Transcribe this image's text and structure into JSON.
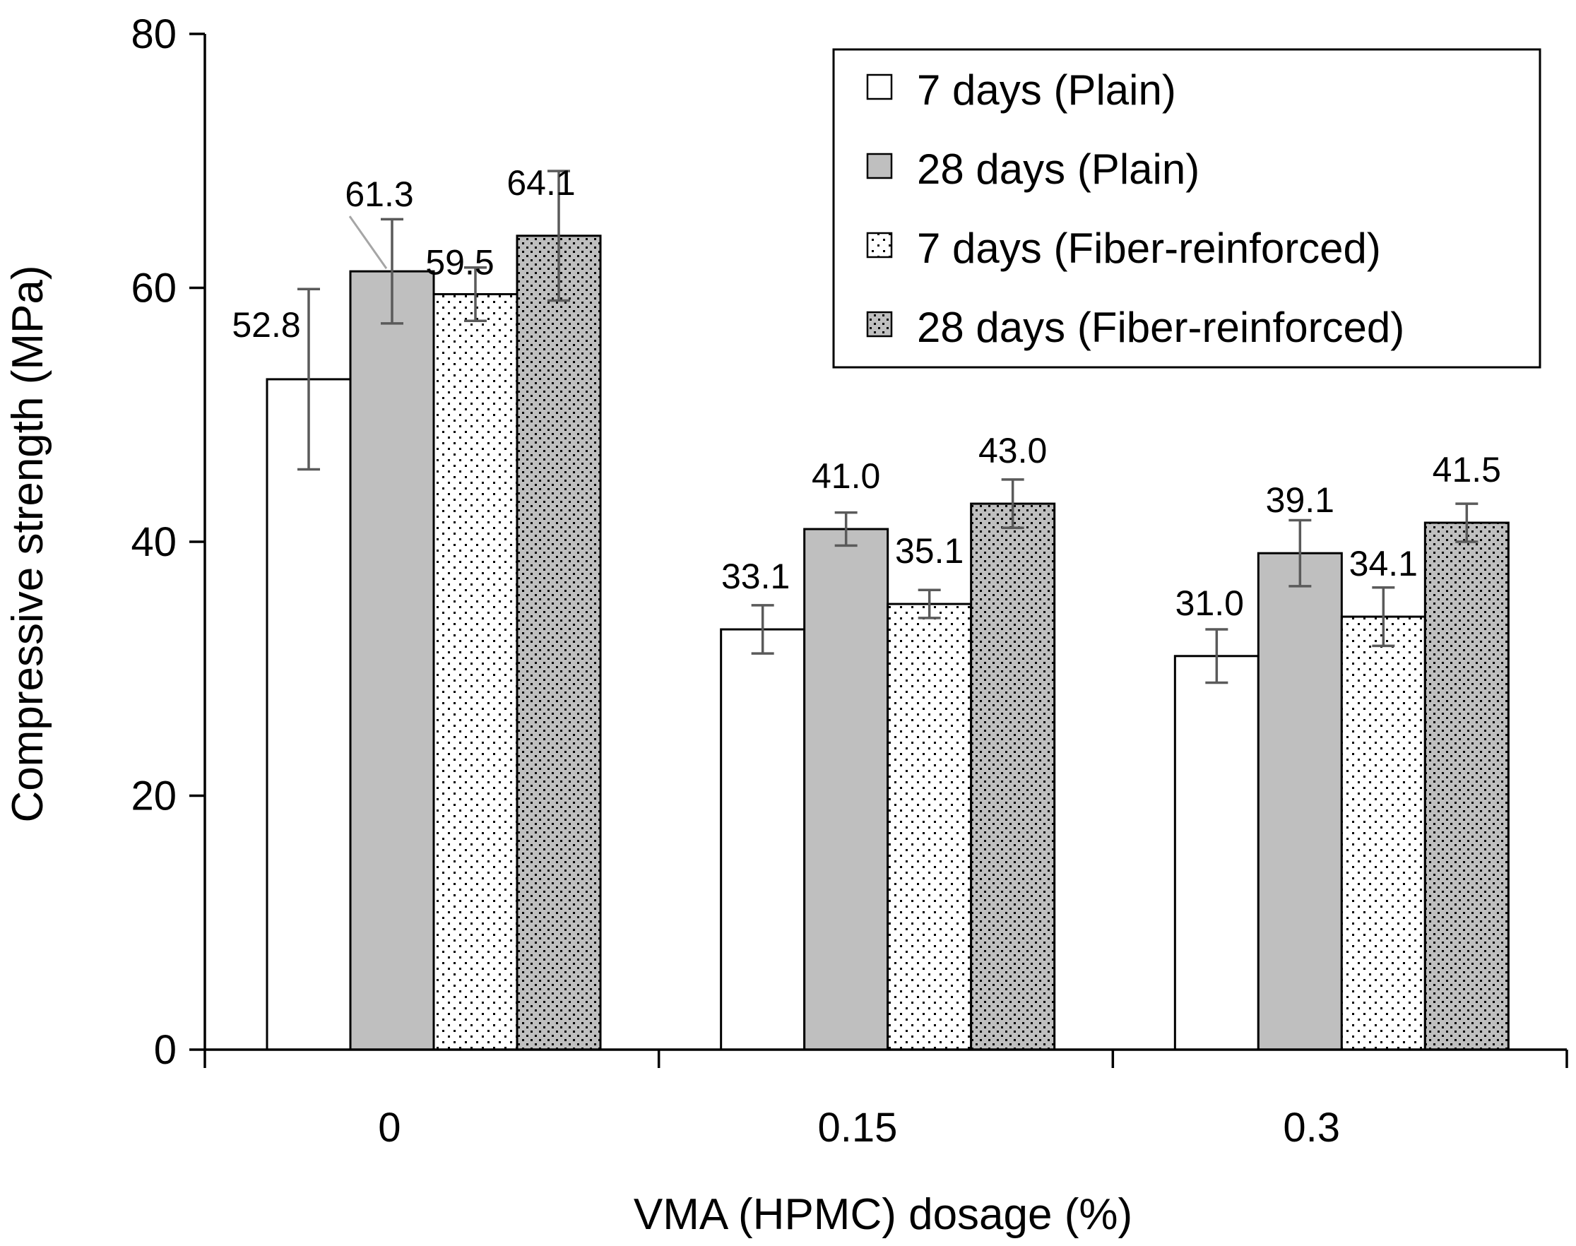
{
  "chart_data": {
    "type": "bar",
    "title": "",
    "xlabel": "VMA (HPMC) dosage (%)",
    "ylabel": "Compressive strength (MPa)",
    "categories": [
      "0",
      "0.15",
      "0.3"
    ],
    "ylim": [
      0,
      80
    ],
    "yticks": [
      0,
      20,
      40,
      60,
      80
    ],
    "ytick_labels": [
      "0",
      "20",
      "40",
      "60",
      "80"
    ],
    "grid": false,
    "legend_position": "top-right",
    "series": [
      {
        "name": "7 days (Plain)",
        "fill": "white",
        "values": [
          52.8,
          33.1,
          31.0
        ],
        "errors": [
          7.1,
          1.9,
          2.1
        ],
        "labels": [
          "52.8",
          "33.1",
          "31.0"
        ]
      },
      {
        "name": "28 days (Plain)",
        "fill": "gray",
        "values": [
          61.3,
          41.0,
          39.1
        ],
        "errors": [
          4.1,
          1.3,
          2.6
        ],
        "labels": [
          "61.3",
          "41.0",
          "39.1"
        ]
      },
      {
        "name": "7 days (Fiber-reinforced)",
        "fill": "sparse-dots",
        "values": [
          59.5,
          35.1,
          34.1
        ],
        "errors": [
          2.1,
          1.1,
          2.3
        ],
        "labels": [
          "59.5",
          "35.1",
          "34.1"
        ]
      },
      {
        "name": "28 days (Fiber-reinforced)",
        "fill": "dense-dots",
        "values": [
          64.1,
          43.0,
          41.5
        ],
        "errors": [
          5.1,
          1.9,
          1.5
        ],
        "labels": [
          "64.1",
          "43.0",
          "41.5"
        ]
      }
    ]
  },
  "colors": {
    "axis": "#000000",
    "bar_outline": "#000000",
    "plain_28_fill": "#bfbfbf",
    "fiber_28_fill": "#bfbfbf",
    "error_bar": "#5a5a5a",
    "leader_line": "#a6a6a6"
  }
}
